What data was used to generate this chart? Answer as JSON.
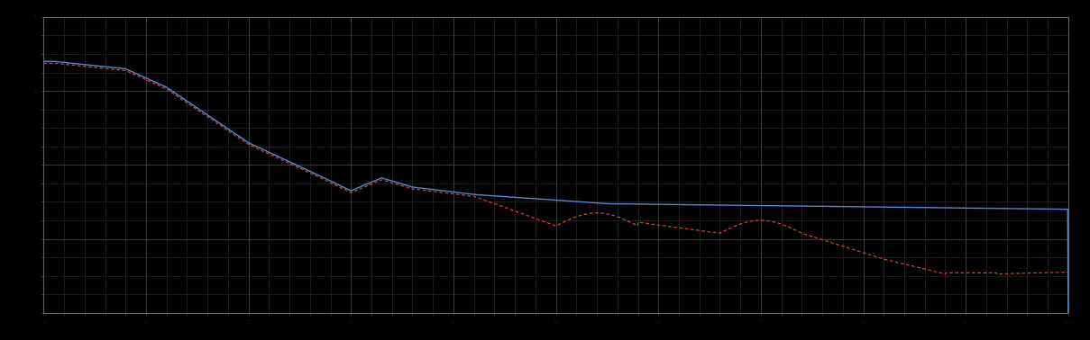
{
  "background_color": "#000000",
  "plot_bg_color": "#000000",
  "grid_color": "#444444",
  "grid_linewidth": 0.6,
  "blue_line_color": "#5588cc",
  "red_line_color": "#cc4433",
  "xlim": [
    0,
    100
  ],
  "ylim": [
    0,
    8
  ],
  "figsize": [
    12.09,
    3.78
  ],
  "dpi": 100,
  "spine_color": "#666666",
  "tick_color": "#333333",
  "tick_label_color": "#333333",
  "major_x_interval": 10,
  "major_y_interval": 2,
  "minor_x_interval": 2,
  "minor_y_interval": 0.5
}
